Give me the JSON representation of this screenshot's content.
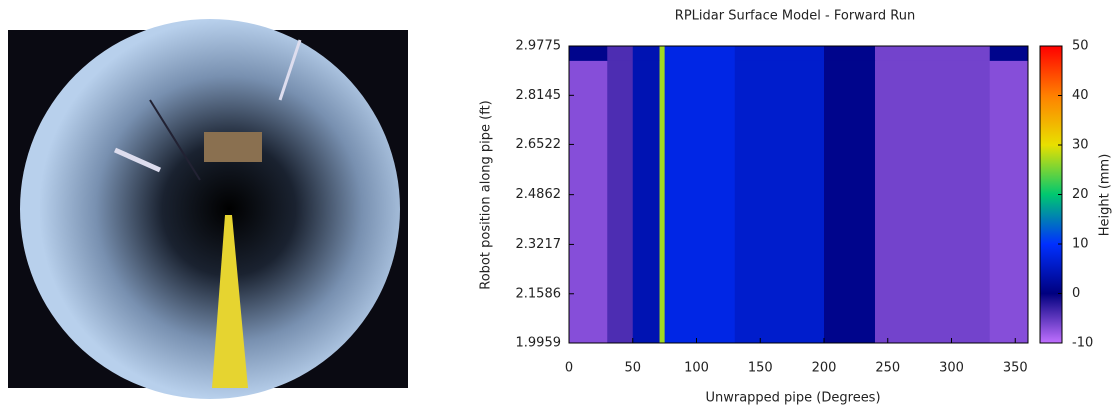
{
  "chart_data": {
    "type": "heatmap",
    "title": "RPLidar Surface Model - Forward Run",
    "xlabel": "Unwrapped pipe (Degrees)",
    "ylabel": "Robot position along pipe (ft)",
    "colorbar_label": "Height (mm)",
    "xlim": [
      0,
      360
    ],
    "xticks": [
      0,
      50,
      100,
      150,
      200,
      250,
      300,
      350
    ],
    "ylim": [
      1.9959,
      2.9775
    ],
    "yticks": [
      1.9959,
      2.1586,
      2.3217,
      2.4862,
      2.6522,
      2.8145,
      2.9775
    ],
    "clim": [
      -10,
      50
    ],
    "cticks": [
      -10,
      0,
      10,
      20,
      30,
      40,
      50
    ],
    "colormap": [
      "#c070ff",
      "#00007f",
      "#0030ff",
      "#00c870",
      "#e8e000",
      "#ff8000",
      "#ff0000"
    ],
    "xbins": [
      0,
      30,
      50,
      71,
      75,
      130,
      200,
      240,
      330,
      360
    ],
    "ybins": [
      1.9959,
      2.93,
      2.9775
    ],
    "z": [
      [
        -7,
        -4,
        4,
        27,
        8,
        6,
        1,
        -6,
        -7
      ],
      [
        1,
        -4,
        4,
        27,
        8,
        6,
        1,
        -6,
        1
      ]
    ]
  }
}
